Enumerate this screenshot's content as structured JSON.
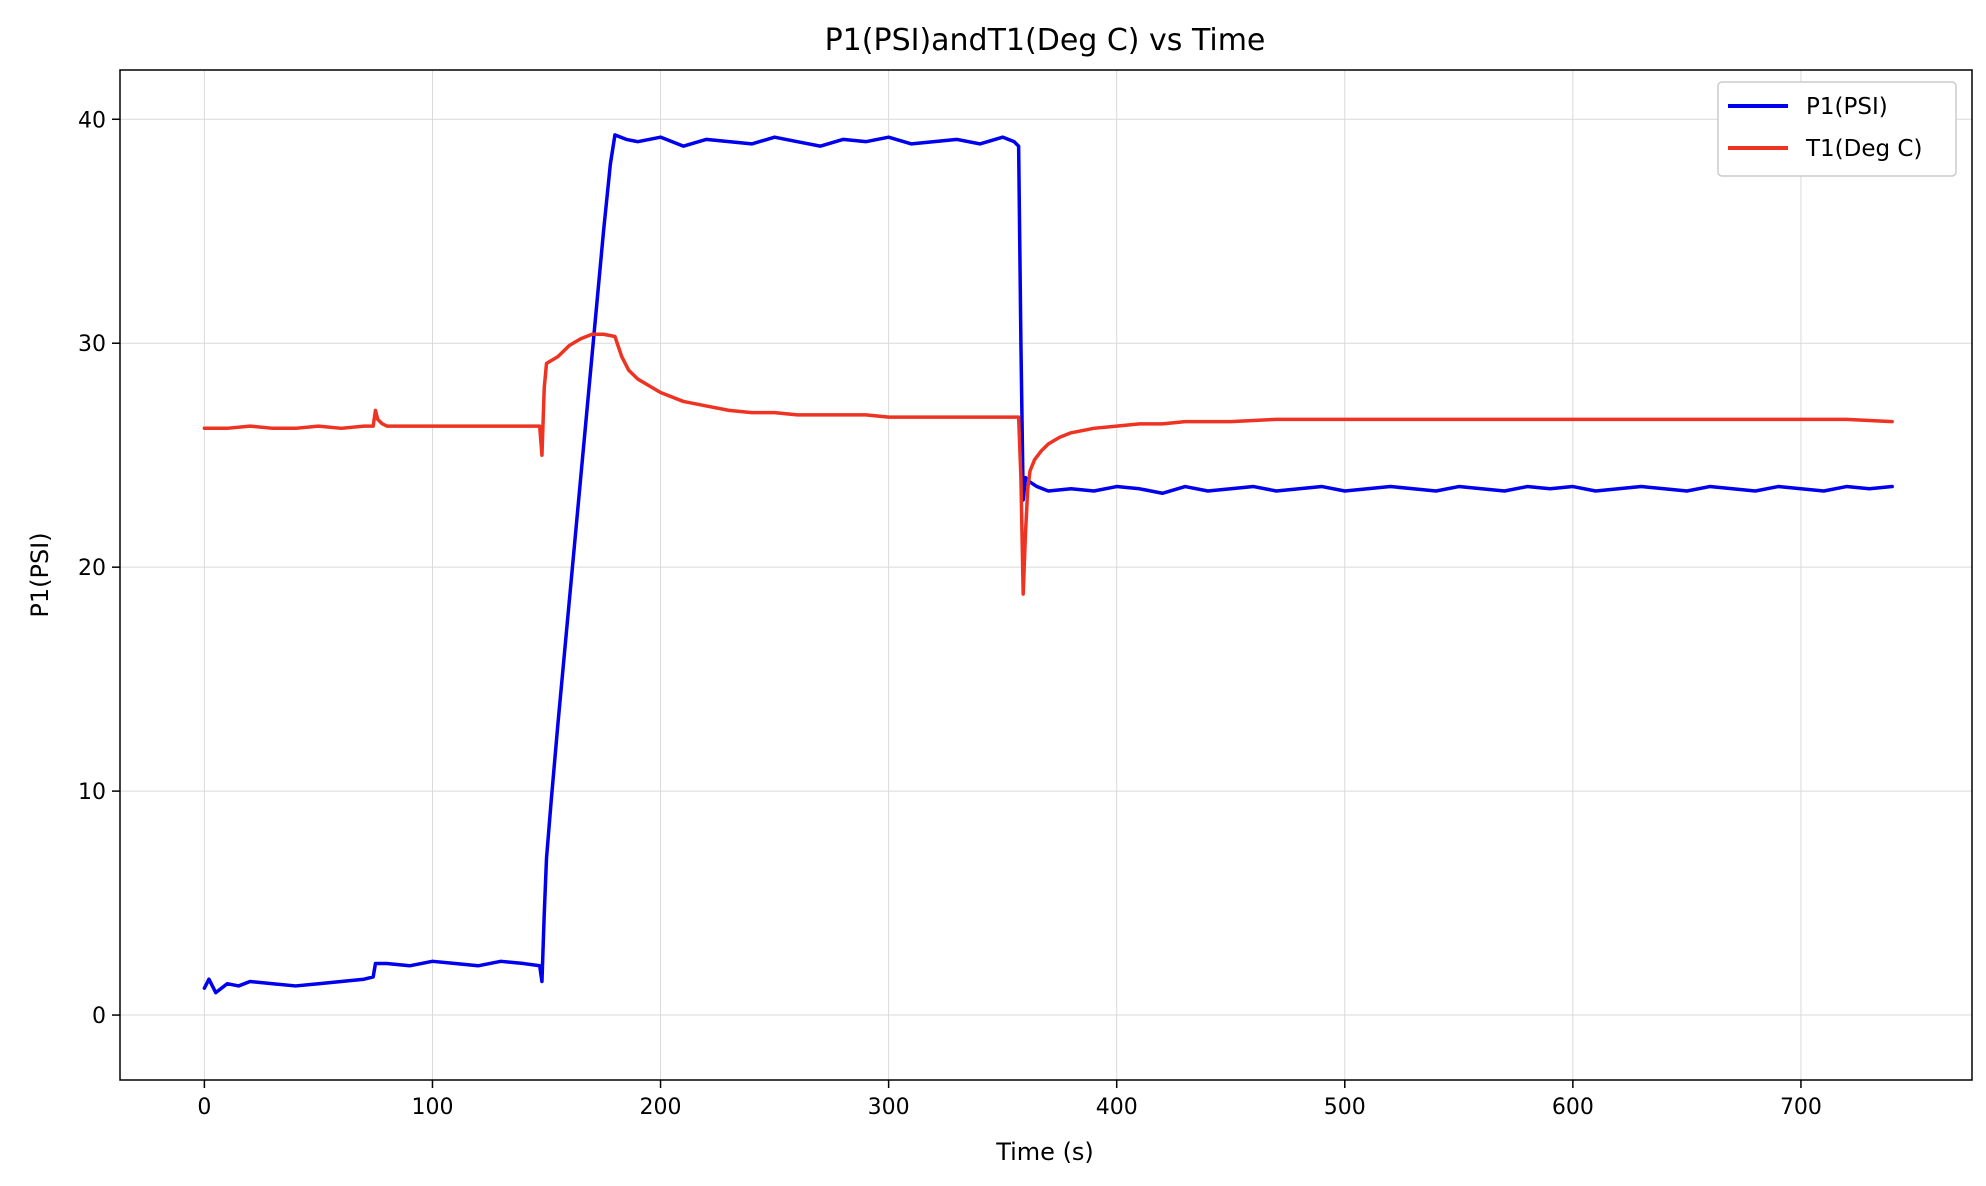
{
  "chart_data": {
    "type": "line",
    "title": "P1(PSI)andT1(Deg C) vs Time",
    "xlabel": "Time (s)",
    "ylabel": "P1(PSI)",
    "xlim": [
      -37,
      775
    ],
    "ylim": [
      -2.9,
      42.2
    ],
    "xticks": [
      0,
      100,
      200,
      300,
      400,
      500,
      600,
      700
    ],
    "yticks": [
      0,
      10,
      20,
      30,
      40
    ],
    "grid": true,
    "legend_position": "top-right",
    "colors": {
      "P1": "#0000ee",
      "T1": "#ee3322"
    },
    "series": [
      {
        "name": "P1(PSI)",
        "color": "#0000ee",
        "x": [
          0,
          2,
          5,
          10,
          15,
          20,
          30,
          40,
          50,
          60,
          70,
          74,
          75,
          80,
          90,
          100,
          110,
          120,
          130,
          140,
          147,
          148,
          149,
          150,
          152,
          155,
          160,
          165,
          170,
          175,
          178,
          180,
          185,
          190,
          200,
          210,
          220,
          230,
          240,
          250,
          260,
          270,
          280,
          290,
          300,
          310,
          320,
          330,
          340,
          350,
          355,
          357,
          358,
          359,
          360,
          362,
          365,
          370,
          380,
          390,
          400,
          410,
          420,
          430,
          440,
          450,
          460,
          470,
          480,
          490,
          500,
          510,
          520,
          530,
          540,
          550,
          560,
          570,
          580,
          590,
          600,
          610,
          620,
          630,
          640,
          650,
          660,
          670,
          680,
          690,
          700,
          710,
          720,
          730,
          740
        ],
        "y": [
          1.2,
          1.6,
          1.0,
          1.4,
          1.3,
          1.5,
          1.4,
          1.3,
          1.4,
          1.5,
          1.6,
          1.7,
          2.3,
          2.3,
          2.2,
          2.4,
          2.3,
          2.2,
          2.4,
          2.3,
          2.2,
          1.5,
          4.5,
          7.0,
          9.5,
          13.0,
          18.5,
          24.0,
          29.5,
          35.0,
          38.0,
          39.3,
          39.1,
          39.0,
          39.2,
          38.8,
          39.1,
          39.0,
          38.9,
          39.2,
          39.0,
          38.8,
          39.1,
          39.0,
          39.2,
          38.9,
          39.0,
          39.1,
          38.9,
          39.2,
          39.0,
          38.8,
          30.0,
          23.0,
          24.0,
          23.8,
          23.6,
          23.4,
          23.5,
          23.4,
          23.6,
          23.5,
          23.3,
          23.6,
          23.4,
          23.5,
          23.6,
          23.4,
          23.5,
          23.6,
          23.4,
          23.5,
          23.6,
          23.5,
          23.4,
          23.6,
          23.5,
          23.4,
          23.6,
          23.5,
          23.6,
          23.4,
          23.5,
          23.6,
          23.5,
          23.4,
          23.6,
          23.5,
          23.4,
          23.6,
          23.5,
          23.4,
          23.6,
          23.5,
          23.6
        ]
      },
      {
        "name": "T1(Deg C)",
        "color": "#ee3322",
        "x": [
          0,
          10,
          20,
          30,
          40,
          50,
          60,
          70,
          74,
          75,
          76,
          78,
          80,
          90,
          100,
          110,
          120,
          130,
          140,
          147,
          148,
          149,
          150,
          155,
          160,
          165,
          170,
          175,
          180,
          183,
          186,
          190,
          200,
          210,
          220,
          230,
          240,
          250,
          260,
          270,
          280,
          290,
          300,
          310,
          320,
          330,
          340,
          350,
          357,
          358,
          359,
          360,
          361,
          362,
          364,
          367,
          370,
          375,
          380,
          390,
          400,
          410,
          420,
          430,
          440,
          450,
          470,
          500,
          530,
          560,
          600,
          640,
          680,
          720,
          740
        ],
        "y": [
          26.2,
          26.2,
          26.3,
          26.2,
          26.2,
          26.3,
          26.2,
          26.3,
          26.3,
          27.0,
          26.6,
          26.4,
          26.3,
          26.3,
          26.3,
          26.3,
          26.3,
          26.3,
          26.3,
          26.3,
          25.0,
          28.0,
          29.1,
          29.4,
          29.9,
          30.2,
          30.4,
          30.4,
          30.3,
          29.4,
          28.8,
          28.4,
          27.8,
          27.4,
          27.2,
          27.0,
          26.9,
          26.9,
          26.8,
          26.8,
          26.8,
          26.8,
          26.7,
          26.7,
          26.7,
          26.7,
          26.7,
          26.7,
          26.7,
          24.0,
          18.8,
          21.5,
          23.5,
          24.3,
          24.8,
          25.2,
          25.5,
          25.8,
          26.0,
          26.2,
          26.3,
          26.4,
          26.4,
          26.5,
          26.5,
          26.5,
          26.6,
          26.6,
          26.6,
          26.6,
          26.6,
          26.6,
          26.6,
          26.6,
          26.5
        ]
      }
    ]
  }
}
